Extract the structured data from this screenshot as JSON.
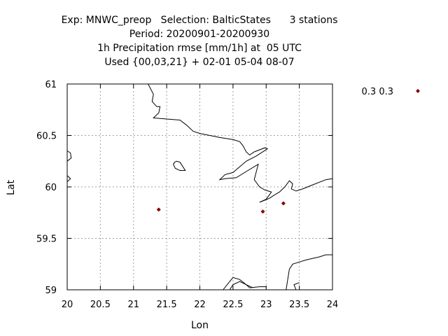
{
  "title_lines": [
    "Exp: MNWC_preop   Selection: BalticStates      3 stations",
    "Period: 20200901-20200930",
    "1h Precipitation rmse [mm/1h] at  05 UTC",
    "Used {00,03,21} + 02-01 05-04 08-07"
  ],
  "chart_data": {
    "type": "scatter",
    "title": "Exp: MNWC_preop   Selection: BalticStates      3 stations",
    "subtitle": "Period: 20200901-20200930 | 1h Precipitation rmse [mm/1h] at  05 UTC | Used {00,03,21} + 02-01 05-04 08-07",
    "xlabel": "Lon",
    "ylabel": "Lat",
    "xlim": [
      20,
      24
    ],
    "ylim": [
      59,
      61
    ],
    "x_ticks": [
      "20",
      "20.5",
      "21",
      "21.5",
      "22",
      "22.5",
      "23",
      "23.5",
      "24"
    ],
    "y_ticks": [
      "59",
      "59.5",
      "60",
      "60.5",
      "61"
    ],
    "grid": true,
    "legend_position": "top-right (outside)",
    "series": [
      {
        "name": "0.3 0.3",
        "color": "#8b0000",
        "marker": "diamond",
        "points": [
          {
            "lon": 21.38,
            "lat": 59.78
          },
          {
            "lon": 22.95,
            "lat": 59.76
          },
          {
            "lon": 23.26,
            "lat": 59.84
          }
        ]
      }
    ],
    "coastlines": [
      [
        [
          21.22,
          61.0
        ],
        [
          21.3,
          60.9
        ],
        [
          21.28,
          60.83
        ],
        [
          21.35,
          60.78
        ],
        [
          21.4,
          60.78
        ],
        [
          21.38,
          60.72
        ],
        [
          21.3,
          60.67
        ],
        [
          21.5,
          60.66
        ],
        [
          21.7,
          60.65
        ],
        [
          21.8,
          60.6
        ],
        [
          21.9,
          60.54
        ],
        [
          22.0,
          60.52
        ],
        [
          22.3,
          60.48
        ],
        [
          22.5,
          60.46
        ],
        [
          22.6,
          60.44
        ],
        [
          22.65,
          60.4
        ],
        [
          22.7,
          60.34
        ],
        [
          22.75,
          60.31
        ],
        [
          22.82,
          60.34
        ],
        [
          22.98,
          60.38
        ],
        [
          23.02,
          60.37
        ],
        [
          22.85,
          60.3
        ],
        [
          22.7,
          60.25
        ],
        [
          22.5,
          60.14
        ],
        [
          22.38,
          60.12
        ],
        [
          22.3,
          60.07
        ],
        [
          22.38,
          60.08
        ],
        [
          22.55,
          60.09
        ],
        [
          22.7,
          60.15
        ],
        [
          22.88,
          60.22
        ],
        [
          22.82,
          60.07
        ],
        [
          22.9,
          60.0
        ],
        [
          22.98,
          59.97
        ],
        [
          23.08,
          59.95
        ],
        [
          23.0,
          59.88
        ],
        [
          22.9,
          59.85
        ],
        [
          23.05,
          59.89
        ],
        [
          23.12,
          59.92
        ],
        [
          23.2,
          59.95
        ],
        [
          23.28,
          60.0
        ],
        [
          23.35,
          60.06
        ],
        [
          23.4,
          60.03
        ],
        [
          23.38,
          59.98
        ],
        [
          23.45,
          59.96
        ],
        [
          23.55,
          59.98
        ],
        [
          23.7,
          60.02
        ],
        [
          23.9,
          60.07
        ],
        [
          24.0,
          60.08
        ]
      ],
      [
        [
          21.62,
          60.24
        ],
        [
          21.65,
          60.25
        ],
        [
          21.7,
          60.24
        ],
        [
          21.72,
          60.22
        ],
        [
          21.78,
          60.16
        ],
        [
          21.7,
          60.16
        ],
        [
          21.63,
          60.18
        ],
        [
          21.6,
          60.22
        ],
        [
          21.62,
          60.24
        ]
      ],
      [
        [
          20.0,
          60.35
        ],
        [
          20.05,
          60.33
        ],
        [
          20.06,
          60.28
        ],
        [
          20.0,
          60.25
        ]
      ],
      [
        [
          20.0,
          60.11
        ],
        [
          20.05,
          60.08
        ],
        [
          20.0,
          60.05
        ]
      ],
      [
        [
          22.35,
          59.0
        ],
        [
          22.45,
          59.08
        ],
        [
          22.5,
          59.12
        ],
        [
          22.6,
          59.1
        ],
        [
          22.7,
          59.05
        ],
        [
          22.75,
          59.02
        ],
        [
          22.9,
          59.03
        ],
        [
          23.0,
          59.03
        ]
      ],
      [
        [
          22.45,
          59.0
        ],
        [
          22.5,
          59.05
        ],
        [
          22.6,
          59.08
        ],
        [
          22.7,
          59.05
        ],
        [
          22.8,
          59.02
        ]
      ],
      [
        [
          23.3,
          59.0
        ],
        [
          23.35,
          59.2
        ],
        [
          23.4,
          59.25
        ],
        [
          23.5,
          59.27
        ],
        [
          23.6,
          59.29
        ],
        [
          23.8,
          59.32
        ],
        [
          23.9,
          59.34
        ],
        [
          24.0,
          59.34
        ]
      ],
      [
        [
          23.45,
          59.0
        ],
        [
          23.42,
          59.05
        ],
        [
          23.5,
          59.07
        ]
      ]
    ]
  }
}
